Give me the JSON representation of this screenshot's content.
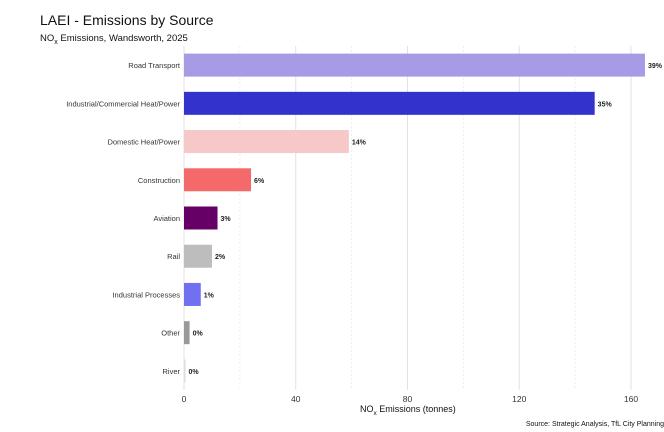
{
  "chart_data": {
    "type": "bar",
    "orientation": "horizontal",
    "title": "LAEI - Emissions by Source",
    "subtitle_prefix": "NO",
    "subtitle_sub": "x",
    "subtitle_rest": " Emissions, Wandsworth, 2025",
    "xlabel_prefix": "NO",
    "xlabel_sub": "x",
    "xlabel_rest": " Emissions (tonnes)",
    "source": "Source: Strategic Analysis, TfL City Planning",
    "xlim": [
      0,
      168
    ],
    "xticks": [
      0,
      40,
      80,
      120,
      160
    ],
    "grid": true,
    "categories": [
      "Road Transport",
      "Industrial/Commercial Heat/Power",
      "Domestic Heat/Power",
      "Construction",
      "Aviation",
      "Rail",
      "Industrial Processes",
      "Other",
      "River"
    ],
    "values": [
      165,
      147,
      59,
      24,
      12,
      10,
      6,
      2,
      0.3
    ],
    "labels": [
      "39%",
      "35%",
      "14%",
      "6%",
      "3%",
      "2%",
      "1%",
      "0%",
      "0%"
    ],
    "colors": [
      "#a79be6",
      "#3333cc",
      "#f7c8c8",
      "#f46a6a",
      "#660066",
      "#bdbdbd",
      "#7070f0",
      "#999999",
      "#dddddd"
    ]
  }
}
